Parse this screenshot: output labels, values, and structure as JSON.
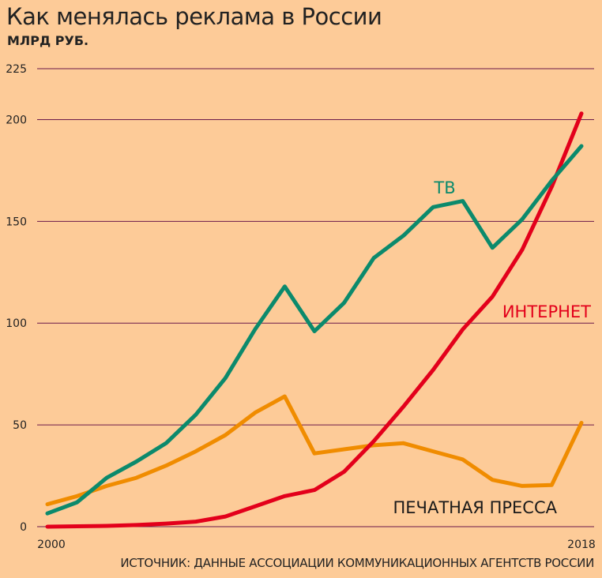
{
  "title": "Как менялась реклама в России",
  "source": "ИСТОЧНИК: ДАННЫЕ АССОЦИАЦИИ КОММУНИКАЦИОННЫХ АГЕНТСТВ РОССИИ",
  "chart_data": {
    "type": "line",
    "ylabel": "МЛРД РУБ.",
    "xlabel": "",
    "x": [
      2000,
      2001,
      2002,
      2003,
      2004,
      2005,
      2006,
      2007,
      2008,
      2009,
      2010,
      2011,
      2012,
      2013,
      2014,
      2015,
      2016,
      2017,
      2018
    ],
    "x_tick_labels": [
      "2000",
      "2018"
    ],
    "ylim": [
      0,
      225
    ],
    "yticks": [
      0,
      50,
      100,
      150,
      200,
      225
    ],
    "grid": true,
    "grid_color": "#6b1a4a",
    "series": [
      {
        "name": "ТВ",
        "color": "#0b8a6c",
        "values": [
          6.5,
          12,
          24,
          32,
          41,
          55,
          73,
          97,
          118,
          96,
          110,
          132,
          143,
          157,
          160,
          137,
          151,
          170,
          187
        ]
      },
      {
        "name": "ИНТЕРНЕТ",
        "color": "#e3001b",
        "values": [
          0,
          0.2,
          0.4,
          0.8,
          1.5,
          2.5,
          5,
          10,
          15,
          18,
          27,
          42,
          59,
          77,
          97,
          113,
          136,
          167,
          203
        ]
      },
      {
        "name": "ПЕЧАТНАЯ ПРЕССА",
        "color": "#f08c00",
        "values": [
          11,
          15,
          20,
          24,
          30,
          37,
          45,
          56,
          64,
          36,
          38,
          40,
          41,
          37,
          33,
          23,
          20,
          20.5,
          51
        ]
      }
    ]
  }
}
